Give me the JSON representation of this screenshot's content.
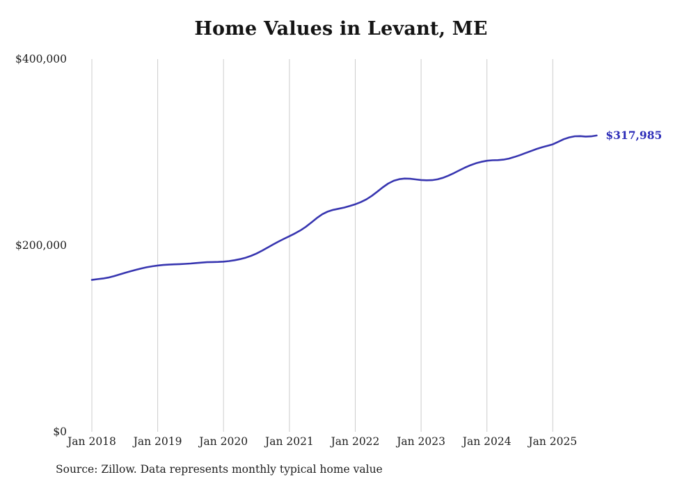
{
  "page": {
    "background": "#ffffff"
  },
  "chart_data": {
    "type": "line",
    "title": "Home Values in Levant, ME",
    "source_note": "Source: Zillow. Data represents monthly typical home value",
    "series_name": "Monthly typical home value",
    "end_label": "$317,985",
    "end_value": 317985,
    "line_color": "#3735b0",
    "end_label_color": "#2c2cb8",
    "gridline_color": "#cccccc",
    "text_color": "#1c1c1c",
    "ylim": [
      0,
      400000
    ],
    "grid": "vertical-only",
    "legend": "none",
    "y_ticks": [
      {
        "value": 0,
        "label": "$0"
      },
      {
        "value": 200000,
        "label": "$200,000"
      },
      {
        "value": 400000,
        "label": "$400,000"
      }
    ],
    "x_ticks": [
      {
        "label": "Jan 2018",
        "month_index": 0
      },
      {
        "label": "Jan 2019",
        "month_index": 12
      },
      {
        "label": "Jan 2020",
        "month_index": 24
      },
      {
        "label": "Jan 2021",
        "month_index": 36
      },
      {
        "label": "Jan 2022",
        "month_index": 48
      },
      {
        "label": "Jan 2023",
        "month_index": 60
      },
      {
        "label": "Jan 2024",
        "month_index": 72
      },
      {
        "label": "Jan 2025",
        "month_index": 84
      }
    ],
    "months": [
      "2018-01",
      "2018-02",
      "2018-03",
      "2018-04",
      "2018-05",
      "2018-06",
      "2018-07",
      "2018-08",
      "2018-09",
      "2018-10",
      "2018-11",
      "2018-12",
      "2019-01",
      "2019-02",
      "2019-03",
      "2019-04",
      "2019-05",
      "2019-06",
      "2019-07",
      "2019-08",
      "2019-09",
      "2019-10",
      "2019-11",
      "2019-12",
      "2020-01",
      "2020-02",
      "2020-03",
      "2020-04",
      "2020-05",
      "2020-06",
      "2020-07",
      "2020-08",
      "2020-09",
      "2020-10",
      "2020-11",
      "2020-12",
      "2021-01",
      "2021-02",
      "2021-03",
      "2021-04",
      "2021-05",
      "2021-06",
      "2021-07",
      "2021-08",
      "2021-09",
      "2021-10",
      "2021-11",
      "2021-12",
      "2022-01",
      "2022-02",
      "2022-03",
      "2022-04",
      "2022-05",
      "2022-06",
      "2022-07",
      "2022-08",
      "2022-09",
      "2022-10",
      "2022-11",
      "2022-12",
      "2023-01",
      "2023-02",
      "2023-03",
      "2023-04",
      "2023-05",
      "2023-06",
      "2023-07",
      "2023-08",
      "2023-09",
      "2023-10",
      "2023-11",
      "2023-12",
      "2024-01",
      "2024-02",
      "2024-03",
      "2024-04",
      "2024-05",
      "2024-06",
      "2024-07",
      "2024-08",
      "2024-09",
      "2024-10",
      "2024-11",
      "2024-12",
      "2025-01",
      "2025-02",
      "2025-03",
      "2025-04",
      "2025-05",
      "2025-06",
      "2025-07",
      "2025-08",
      "2025-09"
    ],
    "values": [
      163000,
      163800,
      164500,
      165500,
      167000,
      168700,
      170500,
      172200,
      173800,
      175300,
      176600,
      177600,
      178400,
      179000,
      179400,
      179700,
      179900,
      180200,
      180600,
      181100,
      181600,
      182000,
      182200,
      182300,
      182600,
      183200,
      184100,
      185300,
      186800,
      188800,
      191300,
      194300,
      197600,
      200900,
      204100,
      207100,
      209900,
      212800,
      216100,
      220000,
      224600,
      229400,
      233500,
      236400,
      238200,
      239400,
      240700,
      242300,
      244200,
      246500,
      249400,
      253100,
      257600,
      262300,
      266400,
      269400,
      271100,
      271800,
      271600,
      270900,
      270200,
      269900,
      270100,
      271000,
      272600,
      274900,
      277700,
      280700,
      283600,
      286100,
      288200,
      289800,
      290900,
      291400,
      291600,
      292100,
      293200,
      294900,
      296900,
      299100,
      301300,
      303400,
      305300,
      306900,
      308500,
      311300,
      314000,
      316000,
      317200,
      317300,
      316900,
      317100,
      317985
    ]
  }
}
